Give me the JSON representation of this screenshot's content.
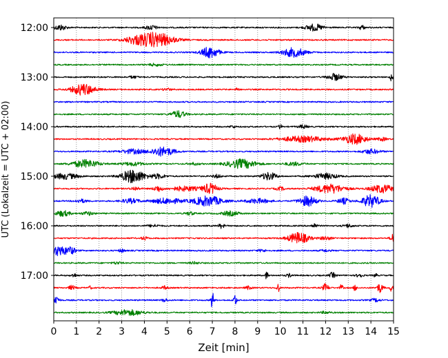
{
  "chart_data": {
    "type": "line",
    "title": "",
    "xlabel": "Zeit  [min]",
    "ylabel": "UTC (Lokalzeit = UTC + 02:00)",
    "xlim": [
      0,
      15
    ],
    "x_ticks": [
      "0",
      "1",
      "2",
      "3",
      "4",
      "5",
      "6",
      "7",
      "8",
      "9",
      "10",
      "11",
      "12",
      "13",
      "14",
      "15"
    ],
    "y_tick_labels": [
      "12:00",
      "13:00",
      "14:00",
      "15:00",
      "16:00",
      "17:00"
    ],
    "grid": "vertical dotted lines at each minute",
    "colors": [
      "#000000",
      "#ff0000",
      "#0000ff",
      "#008000"
    ],
    "traces": [
      {
        "start": "12:00",
        "color": "#000000",
        "events": [
          {
            "t": 0.3,
            "amp": 0.5,
            "dur": 0.4
          },
          {
            "t": 4.3,
            "amp": 0.4,
            "dur": 0.4
          },
          {
            "t": 11.5,
            "amp": 0.6,
            "dur": 0.6
          },
          {
            "t": 13.6,
            "amp": 0.4,
            "dur": 0.2
          }
        ]
      },
      {
        "start": "12:15",
        "color": "#ff0000",
        "events": [
          {
            "t": 4.5,
            "amp": 1.3,
            "dur": 1.2
          },
          {
            "t": 3.6,
            "amp": 0.5,
            "dur": 0.8
          }
        ]
      },
      {
        "start": "12:30",
        "color": "#0000ff",
        "events": [
          {
            "t": 6.9,
            "amp": 1.0,
            "dur": 0.6
          },
          {
            "t": 10.6,
            "amp": 0.8,
            "dur": 0.8
          }
        ]
      },
      {
        "start": "12:45",
        "color": "#008000",
        "events": [
          {
            "t": 4.5,
            "amp": 0.2,
            "dur": 0.5
          }
        ]
      },
      {
        "start": "13:00",
        "color": "#000000",
        "events": [
          {
            "t": 12.4,
            "amp": 0.6,
            "dur": 0.5
          },
          {
            "t": 14.9,
            "amp": 0.7,
            "dur": 0.1
          },
          {
            "t": 3.5,
            "amp": 0.2,
            "dur": 0.3
          }
        ]
      },
      {
        "start": "13:15",
        "color": "#ff0000",
        "events": [
          {
            "t": 1.3,
            "amp": 1.0,
            "dur": 0.8
          },
          {
            "t": 8.1,
            "amp": 0.4,
            "dur": 0.1
          },
          {
            "t": 5.0,
            "amp": 0.2,
            "dur": 0.3
          }
        ]
      },
      {
        "start": "13:30",
        "color": "#0000ff",
        "events": []
      },
      {
        "start": "13:45",
        "color": "#008000",
        "events": [
          {
            "t": 5.5,
            "amp": 0.6,
            "dur": 0.5
          }
        ]
      },
      {
        "start": "14:00",
        "color": "#000000",
        "events": [
          {
            "t": 10.0,
            "amp": 0.4,
            "dur": 0.1
          },
          {
            "t": 11.0,
            "amp": 0.3,
            "dur": 0.3
          },
          {
            "t": 7.9,
            "amp": 0.2,
            "dur": 0.2
          }
        ]
      },
      {
        "start": "14:15",
        "color": "#ff0000",
        "events": [
          {
            "t": 13.3,
            "amp": 0.9,
            "dur": 0.8
          },
          {
            "t": 11.0,
            "amp": 0.5,
            "dur": 1.5
          },
          {
            "t": 14.5,
            "amp": 0.3,
            "dur": 0.3
          }
        ]
      },
      {
        "start": "14:30",
        "color": "#0000ff",
        "events": [
          {
            "t": 4.8,
            "amp": 0.8,
            "dur": 0.8
          },
          {
            "t": 3.5,
            "amp": 0.4,
            "dur": 0.8
          },
          {
            "t": 14.0,
            "amp": 0.4,
            "dur": 0.6
          }
        ]
      },
      {
        "start": "14:45",
        "color": "#008000",
        "events": [
          {
            "t": 1.4,
            "amp": 0.7,
            "dur": 0.9
          },
          {
            "t": 8.3,
            "amp": 0.8,
            "dur": 1.0
          },
          {
            "t": 3.5,
            "amp": 0.3,
            "dur": 0.8
          },
          {
            "t": 10.6,
            "amp": 0.3,
            "dur": 0.6
          },
          {
            "t": 6.2,
            "amp": 0.2,
            "dur": 0.4
          }
        ]
      },
      {
        "start": "15:00",
        "color": "#000000",
        "events": [
          {
            "t": 3.5,
            "amp": 1.2,
            "dur": 0.8
          },
          {
            "t": 0.5,
            "amp": 0.5,
            "dur": 0.9
          },
          {
            "t": 9.5,
            "amp": 0.7,
            "dur": 0.5
          },
          {
            "t": 12.0,
            "amp": 0.5,
            "dur": 0.8
          },
          {
            "t": 7.2,
            "amp": 0.3,
            "dur": 0.3
          },
          {
            "t": 4.6,
            "amp": 0.4,
            "dur": 0.5
          }
        ]
      },
      {
        "start": "15:15",
        "color": "#ff0000",
        "events": [
          {
            "t": 6.9,
            "amp": 0.9,
            "dur": 0.5
          },
          {
            "t": 12.2,
            "amp": 0.8,
            "dur": 1.0
          },
          {
            "t": 14.5,
            "amp": 0.7,
            "dur": 0.8
          },
          {
            "t": 4.6,
            "amp": 0.5,
            "dur": 0.3
          },
          {
            "t": 5.8,
            "amp": 0.4,
            "dur": 1.0
          },
          {
            "t": 10.0,
            "amp": 0.3,
            "dur": 0.3
          },
          {
            "t": 3.6,
            "amp": 0.3,
            "dur": 0.3
          }
        ]
      },
      {
        "start": "15:30",
        "color": "#0000ff",
        "events": [
          {
            "t": 14.0,
            "amp": 1.1,
            "dur": 0.6
          },
          {
            "t": 6.8,
            "amp": 0.9,
            "dur": 1.0
          },
          {
            "t": 11.2,
            "amp": 0.9,
            "dur": 0.6
          },
          {
            "t": 5.0,
            "amp": 0.5,
            "dur": 1.0
          },
          {
            "t": 3.4,
            "amp": 0.4,
            "dur": 0.6
          },
          {
            "t": 9.0,
            "amp": 0.4,
            "dur": 0.8
          },
          {
            "t": 1.2,
            "amp": 0.3,
            "dur": 0.4
          },
          {
            "t": 12.8,
            "amp": 0.5,
            "dur": 0.4
          }
        ]
      },
      {
        "start": "15:45",
        "color": "#008000",
        "events": [
          {
            "t": 0.4,
            "amp": 0.5,
            "dur": 0.5
          },
          {
            "t": 6.0,
            "amp": 0.3,
            "dur": 0.3
          },
          {
            "t": 7.8,
            "amp": 0.4,
            "dur": 0.6
          },
          {
            "t": 1.5,
            "amp": 0.3,
            "dur": 0.4
          }
        ]
      },
      {
        "start": "16:00",
        "color": "#000000",
        "events": [
          {
            "t": 7.4,
            "amp": 0.4,
            "dur": 0.2
          },
          {
            "t": 11.5,
            "amp": 0.4,
            "dur": 0.2
          },
          {
            "t": 13.0,
            "amp": 0.3,
            "dur": 0.3
          },
          {
            "t": 4.4,
            "amp": 0.2,
            "dur": 0.4
          }
        ]
      },
      {
        "start": "16:15",
        "color": "#ff0000",
        "events": [
          {
            "t": 10.8,
            "amp": 1.0,
            "dur": 0.7
          },
          {
            "t": 15.0,
            "amp": 0.9,
            "dur": 0.2
          },
          {
            "t": 4.0,
            "amp": 0.3,
            "dur": 0.2
          },
          {
            "t": 12.0,
            "amp": 0.3,
            "dur": 0.4
          }
        ]
      },
      {
        "start": "16:30",
        "color": "#0000ff",
        "events": [
          {
            "t": 0.2,
            "amp": 0.9,
            "dur": 0.4
          },
          {
            "t": 0.7,
            "amp": 0.7,
            "dur": 0.4
          },
          {
            "t": 3.0,
            "amp": 0.3,
            "dur": 0.2
          },
          {
            "t": 9.2,
            "amp": 0.2,
            "dur": 0.3
          },
          {
            "t": 12.0,
            "amp": 0.2,
            "dur": 0.3
          }
        ]
      },
      {
        "start": "16:45",
        "color": "#008000",
        "events": [
          {
            "t": 2.8,
            "amp": 0.2,
            "dur": 0.3
          },
          {
            "t": 6.2,
            "amp": 0.2,
            "dur": 0.3
          }
        ]
      },
      {
        "start": "17:00",
        "color": "#000000",
        "events": [
          {
            "t": 9.4,
            "amp": 0.7,
            "dur": 0.1
          },
          {
            "t": 12.3,
            "amp": 0.5,
            "dur": 0.2
          },
          {
            "t": 13.5,
            "amp": 0.4,
            "dur": 0.2
          },
          {
            "t": 14.2,
            "amp": 0.4,
            "dur": 0.1
          },
          {
            "t": 0.9,
            "amp": 0.3,
            "dur": 0.2
          },
          {
            "t": 10.4,
            "amp": 0.3,
            "dur": 0.2
          }
        ]
      },
      {
        "start": "17:15",
        "color": "#ff0000",
        "events": [
          {
            "t": 0.8,
            "amp": 0.4,
            "dur": 0.2
          },
          {
            "t": 1.6,
            "amp": 0.3,
            "dur": 0.1
          },
          {
            "t": 9.9,
            "amp": 0.8,
            "dur": 0.1
          },
          {
            "t": 12.0,
            "amp": 0.7,
            "dur": 0.2
          },
          {
            "t": 12.7,
            "amp": 0.6,
            "dur": 0.1
          },
          {
            "t": 14.4,
            "amp": 0.8,
            "dur": 0.2
          },
          {
            "t": 14.9,
            "amp": 0.6,
            "dur": 0.1
          },
          {
            "t": 4.9,
            "amp": 0.3,
            "dur": 0.2
          },
          {
            "t": 13.3,
            "amp": 0.6,
            "dur": 0.1
          },
          {
            "t": 8.6,
            "amp": 0.3,
            "dur": 0.2
          }
        ]
      },
      {
        "start": "17:30",
        "color": "#0000ff",
        "events": [
          {
            "t": 0.1,
            "amp": 0.8,
            "dur": 0.2
          },
          {
            "t": 7.0,
            "amp": 1.6,
            "dur": 0.1
          },
          {
            "t": 8.0,
            "amp": 1.2,
            "dur": 0.1
          },
          {
            "t": 4.9,
            "amp": 0.3,
            "dur": 0.2
          },
          {
            "t": 14.2,
            "amp": 0.3,
            "dur": 0.3
          }
        ]
      },
      {
        "start": "17:45",
        "color": "#008000",
        "events": [
          {
            "t": 3.3,
            "amp": 0.5,
            "dur": 1.0
          },
          {
            "t": 12.0,
            "amp": 0.2,
            "dur": 0.3
          }
        ]
      }
    ]
  }
}
